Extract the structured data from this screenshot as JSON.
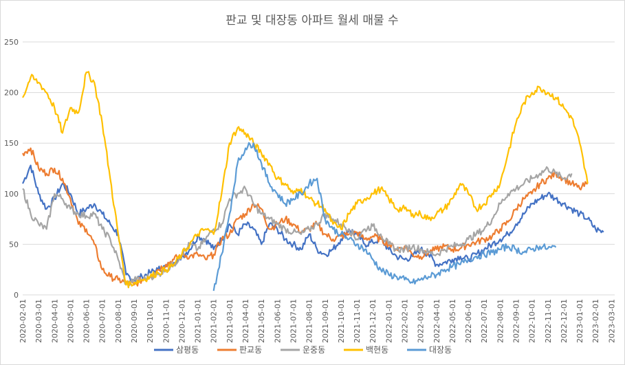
{
  "chart_data": {
    "type": "line",
    "title": "판교 및 대장동 아파트 월세 매물 수",
    "xlabel": "",
    "ylabel": "",
    "ylim": [
      0,
      250
    ],
    "yticks": [
      0,
      50,
      100,
      150,
      200,
      250
    ],
    "grid": true,
    "legend_position": "bottom",
    "x_labels": [
      "2020-02-01",
      "2020-03-01",
      "2020-04-01",
      "2020-05-01",
      "2020-06-01",
      "2020-07-01",
      "2020-08-01",
      "2020-09-01",
      "2020-10-01",
      "2020-11-01",
      "2020-12-01",
      "2021-01-01",
      "2021-02-01",
      "2021-03-01",
      "2021-04-01",
      "2021-05-01",
      "2021-06-01",
      "2021-07-01",
      "2021-08-01",
      "2021-09-01",
      "2021-10-01",
      "2021-11-01",
      "2021-12-01",
      "2022-01-01",
      "2022-02-01",
      "2022-03-01",
      "2022-04-01",
      "2022-05-01",
      "2022-06-01",
      "2022-07-01",
      "2022-08-01",
      "2022-09-01",
      "2022-10-01",
      "2022-11-01",
      "2022-12-01",
      "2023-01-01",
      "2023-02-01",
      "2023-03-01"
    ],
    "x_index": [
      0,
      0.5,
      1,
      1.5,
      2,
      2.5,
      3,
      3.5,
      4,
      4.5,
      5,
      5.5,
      6,
      6.5,
      7,
      7.5,
      8,
      8.5,
      9,
      9.5,
      10,
      10.5,
      11,
      11.5,
      12,
      12.5,
      13,
      13.5,
      14,
      14.5,
      15,
      15.5,
      16,
      16.5,
      17,
      17.5,
      18,
      18.5,
      19,
      19.5,
      20,
      20.5,
      21,
      21.5,
      22,
      22.5,
      23,
      23.5,
      24,
      24.5,
      25,
      25.5,
      26,
      26.5,
      27,
      27.5,
      28,
      28.5,
      29,
      29.5,
      30,
      30.5,
      31,
      31.5,
      32,
      32.5,
      33,
      33.5,
      34,
      34.5,
      35,
      35.5,
      36,
      36.5,
      37,
      37.2
    ],
    "series": [
      {
        "name": "삼평동",
        "color": "#4472C4",
        "values": [
          110,
          128,
          100,
          85,
          95,
          110,
          100,
          80,
          85,
          90,
          80,
          70,
          60,
          20,
          15,
          18,
          22,
          25,
          28,
          32,
          38,
          45,
          58,
          55,
          45,
          55,
          70,
          60,
          70,
          65,
          50,
          70,
          65,
          55,
          50,
          45,
          60,
          45,
          40,
          45,
          55,
          65,
          60,
          50,
          52,
          55,
          45,
          38,
          35,
          38,
          45,
          40,
          30,
          32,
          35,
          38,
          35,
          40,
          45,
          50,
          55,
          60,
          70,
          80,
          90,
          95,
          100,
          95,
          90,
          85,
          80,
          75,
          65,
          62,
          null,
          null
        ]
      },
      {
        "name": "판교동",
        "color": "#ED7D31",
        "values": [
          140,
          145,
          125,
          120,
          125,
          115,
          95,
          70,
          65,
          50,
          25,
          18,
          15,
          12,
          10,
          15,
          18,
          25,
          30,
          35,
          40,
          38,
          40,
          35,
          40,
          55,
          60,
          75,
          80,
          90,
          85,
          65,
          70,
          75,
          70,
          62,
          65,
          70,
          60,
          55,
          58,
          60,
          62,
          55,
          58,
          55,
          50,
          45,
          48,
          40,
          38,
          42,
          45,
          48,
          45,
          46,
          50,
          52,
          55,
          58,
          65,
          72,
          85,
          95,
          100,
          110,
          115,
          120,
          115,
          110,
          105,
          110,
          null,
          null,
          null,
          null
        ]
      },
      {
        "name": "운중동",
        "color": "#A5A5A5",
        "values": [
          105,
          80,
          70,
          65,
          100,
          95,
          85,
          80,
          78,
          80,
          65,
          55,
          35,
          10,
          15,
          15,
          18,
          20,
          25,
          30,
          40,
          50,
          45,
          55,
          65,
          70,
          95,
          100,
          105,
          90,
          80,
          75,
          70,
          65,
          62,
          60,
          65,
          70,
          80,
          75,
          70,
          65,
          55,
          65,
          68,
          60,
          50,
          45,
          45,
          48,
          45,
          42,
          40,
          45,
          48,
          50,
          55,
          60,
          65,
          75,
          90,
          100,
          105,
          110,
          115,
          120,
          125,
          120,
          115,
          120,
          null,
          null,
          null,
          null,
          null,
          null
        ]
      },
      {
        "name": "백현동",
        "color": "#FFC000",
        "values": [
          195,
          215,
          210,
          200,
          185,
          160,
          185,
          180,
          220,
          210,
          170,
          115,
          60,
          10,
          12,
          15,
          18,
          22,
          25,
          30,
          40,
          50,
          60,
          65,
          60,
          100,
          150,
          165,
          160,
          150,
          140,
          130,
          115,
          110,
          100,
          105,
          95,
          90,
          85,
          70,
          65,
          80,
          90,
          95,
          100,
          105,
          95,
          85,
          85,
          80,
          80,
          75,
          80,
          85,
          95,
          110,
          100,
          85,
          90,
          100,
          110,
          140,
          170,
          190,
          200,
          205,
          200,
          195,
          185,
          175,
          150,
          110,
          null,
          null,
          null,
          null
        ]
      },
      {
        "name": "대장동",
        "color": "#5B9BD5",
        "values": [
          null,
          null,
          null,
          null,
          null,
          null,
          null,
          null,
          null,
          null,
          null,
          null,
          null,
          null,
          null,
          null,
          null,
          null,
          null,
          null,
          null,
          null,
          null,
          null,
          4,
          40,
          80,
          130,
          145,
          150,
          130,
          110,
          100,
          90,
          95,
          100,
          110,
          115,
          75,
          65,
          60,
          55,
          50,
          45,
          35,
          25,
          20,
          18,
          15,
          12,
          15,
          18,
          20,
          25,
          28,
          30,
          35,
          38,
          40,
          42,
          45,
          48,
          45,
          42,
          45,
          48,
          46,
          47,
          null,
          null,
          null,
          null,
          null,
          null,
          null,
          null
        ]
      }
    ]
  },
  "legend": [
    {
      "label": "삼평동",
      "color": "#4472C4"
    },
    {
      "label": "판교동",
      "color": "#ED7D31"
    },
    {
      "label": "운중동",
      "color": "#A5A5A5"
    },
    {
      "label": "백현동",
      "color": "#FFC000"
    },
    {
      "label": "대장동",
      "color": "#5B9BD5"
    }
  ]
}
